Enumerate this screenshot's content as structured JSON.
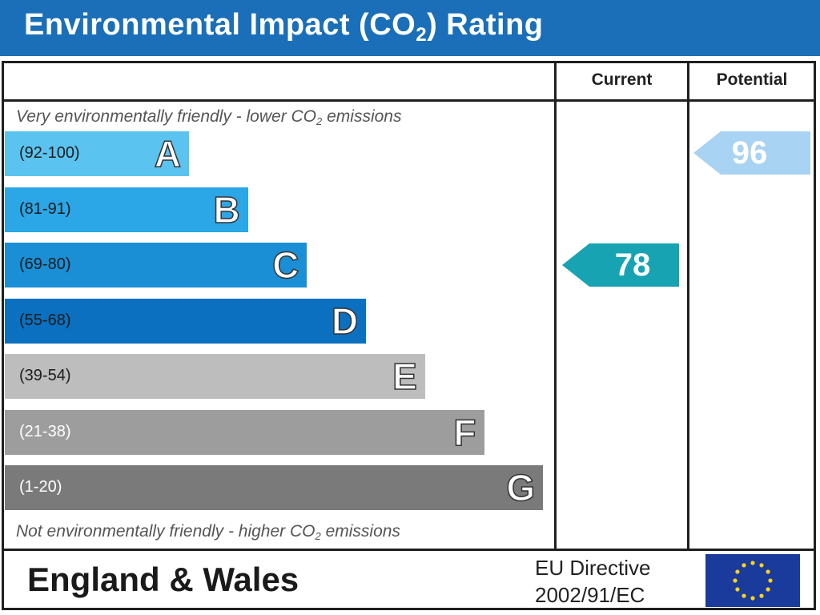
{
  "header": {
    "title_main": "Environmental Impact (CO",
    "title_sub": "2",
    "title_end": ") Rating"
  },
  "columns": {
    "current": "Current",
    "potential": "Potential"
  },
  "notes": {
    "top_pre": "Very environmentally friendly - lower CO",
    "top_sub": "2",
    "top_post": " emissions",
    "bottom_pre": "Not environmentally friendly - higher CO",
    "bottom_sub": "2",
    "bottom_post": " emissions"
  },
  "chart_data": {
    "type": "bar",
    "categories": [
      "A",
      "B",
      "C",
      "D",
      "E",
      "F",
      "G"
    ],
    "ranges": [
      "(92-100)",
      "(81-91)",
      "(69-80)",
      "(55-68)",
      "(39-54)",
      "(21-38)",
      "(1-20)"
    ],
    "colors": [
      "#5bc3ef",
      "#2ba6e6",
      "#1a8fd6",
      "#0b70c0",
      "#bdbdbd",
      "#9d9d9d",
      "#7a7a7a"
    ],
    "current": {
      "value": 78,
      "band": "C",
      "color": "#18a3b3"
    },
    "potential": {
      "value": 96,
      "band": "A",
      "color": "#a9d3f2"
    }
  },
  "footer": {
    "region": "England & Wales",
    "directive_line1": "EU Directive",
    "directive_line2": "2002/91/EC"
  },
  "icons": {
    "eu_flag": "eu-flag-icon"
  }
}
